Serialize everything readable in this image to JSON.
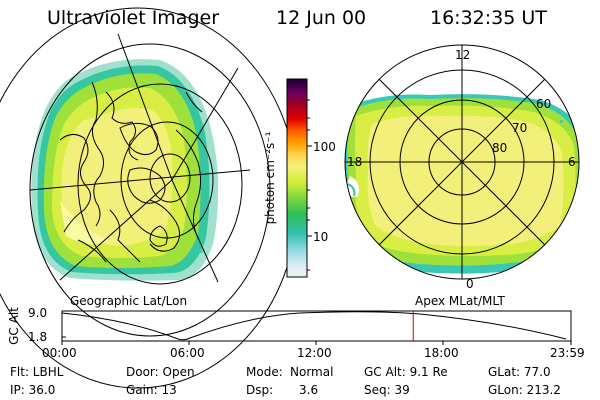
{
  "header": {
    "title": "Ultraviolet Imager",
    "date": "12 Jun 00",
    "time": "16:32:35 UT"
  },
  "left_panel": {
    "caption": "Geographic Lat/Lon"
  },
  "right_panel": {
    "caption": "Apex MLat/MLT",
    "mlt_labels": {
      "top": "12",
      "left": "18",
      "right": "6",
      "bottom": "0"
    },
    "lat_labels": [
      "60",
      "70",
      "80"
    ]
  },
  "colorbar": {
    "unit_label": "photon cm⁻²s⁻¹",
    "ticks": [
      "100",
      "10"
    ]
  },
  "altitude_plot": {
    "ylabel": "GC Alt",
    "y_ticks": [
      "9.0",
      "1.8"
    ],
    "x_ticks": [
      "00:00",
      "06:00",
      "12:00",
      "18:00",
      "23:59"
    ],
    "marker_fraction": 0.69
  },
  "status": {
    "flt": "Flt: LBHL",
    "ip": "IP: 36.0",
    "door": "Door: Open",
    "gain": "Gain: 13",
    "mode_label": "Mode:",
    "mode_value": "Normal",
    "dsp_label": "Dsp:",
    "dsp_value": "3.6",
    "gcalt": "GC Alt: 9.1 Re",
    "seq": "Seq: 39",
    "glat": "GLat: 77.0",
    "glon": "GLon: 213.2"
  }
}
